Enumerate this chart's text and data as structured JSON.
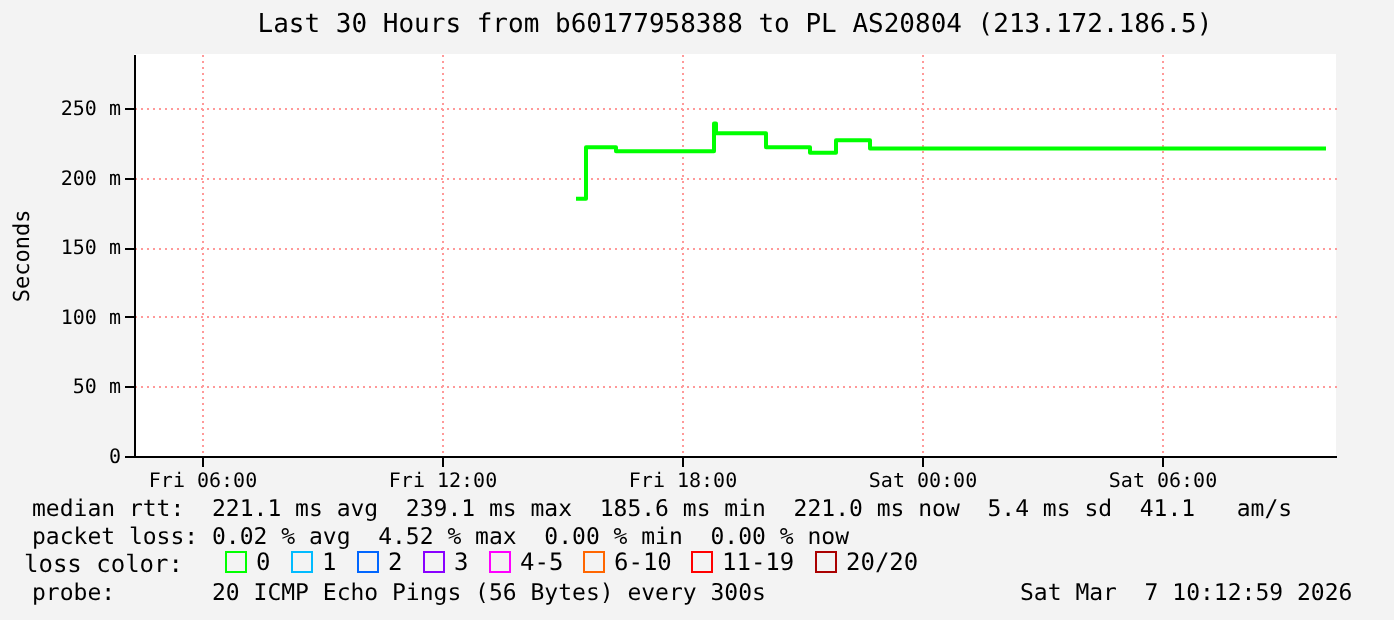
{
  "chart_data": {
    "type": "step",
    "title": "Last 30 Hours from b60177958388 to PL AS20804 (213.172.186.5)",
    "ylabel": "Seconds",
    "legend_title": "loss color:",
    "x": [
      "2026-03-06T15:21",
      "2026-03-06T15:36",
      "2026-03-06T16:21",
      "2026-03-06T18:36",
      "2026-03-06T18:48",
      "2026-03-06T18:51",
      "2026-03-06T20:06",
      "2026-03-06T21:12",
      "2026-03-06T21:51",
      "2026-03-06T22:42",
      "2026-03-07T10:06"
    ],
    "series": [
      {
        "name": "0",
        "color": "#00ff00",
        "values": [
          185,
          222,
          219,
          219,
          239,
          232,
          222,
          218,
          227,
          221,
          221
        ]
      },
      {
        "name": "1",
        "color": "#00bbff",
        "values": [
          null,
          null,
          null,
          null,
          null,
          null,
          null,
          null,
          null,
          null,
          null
        ]
      },
      {
        "name": "2",
        "color": "#0066ff",
        "values": [
          null,
          null,
          null,
          null,
          null,
          null,
          null,
          null,
          null,
          null,
          null
        ]
      },
      {
        "name": "3",
        "color": "#8800ff",
        "values": [
          null,
          null,
          null,
          null,
          null,
          null,
          null,
          null,
          null,
          null,
          null
        ]
      },
      {
        "name": "4-5",
        "color": "#ff00ff",
        "values": [
          null,
          null,
          null,
          null,
          null,
          null,
          null,
          null,
          null,
          null,
          null
        ]
      },
      {
        "name": "6-10",
        "color": "#ff6600",
        "values": [
          null,
          null,
          null,
          null,
          null,
          null,
          null,
          null,
          null,
          null,
          null
        ]
      },
      {
        "name": "11-19",
        "color": "#ff0000",
        "values": [
          null,
          null,
          null,
          null,
          null,
          null,
          null,
          null,
          null,
          null,
          null
        ]
      },
      {
        "name": "20/20",
        "color": "#aa0000",
        "values": [
          null,
          null,
          null,
          null,
          null,
          null,
          null,
          null,
          null,
          null,
          null
        ]
      }
    ],
    "xlim": [
      "2026-03-06T04:18",
      "2026-03-07T10:21"
    ],
    "xticks": [
      {
        "value": "2026-03-06T06:00",
        "label": "Fri 06:00"
      },
      {
        "value": "2026-03-06T12:00",
        "label": "Fri 12:00"
      },
      {
        "value": "2026-03-06T18:00",
        "label": "Fri 18:00"
      },
      {
        "value": "2026-03-07T00:00",
        "label": "Sat 00:00"
      },
      {
        "value": "2026-03-07T06:00",
        "label": "Sat 06:00"
      }
    ],
    "ylim": [
      0,
      289
    ],
    "yticks": [
      {
        "value": 0,
        "label": "0"
      },
      {
        "value": 50,
        "label": "50 m"
      },
      {
        "value": 100,
        "label": "100 m"
      },
      {
        "value": 150,
        "label": "150 m"
      },
      {
        "value": 200,
        "label": "200 m"
      },
      {
        "value": 250,
        "label": "250 m"
      }
    ],
    "grid": true,
    "legend": "bottom",
    "marker": "none",
    "line_style": "solid",
    "annotations": [
      "median rtt:  221.1 ms avg  239.1 ms max  185.6 ms min  221.0 ms now  5.4 ms sd  41.1   am/s",
      "packet loss: 0.02 % avg  4.52 % max  0.00 % min  0.00 % now",
      "probe:       20 ICMP Echo Pings (56 Bytes) every 300s",
      "Sat Mar  7 10:12:59 2026"
    ]
  }
}
